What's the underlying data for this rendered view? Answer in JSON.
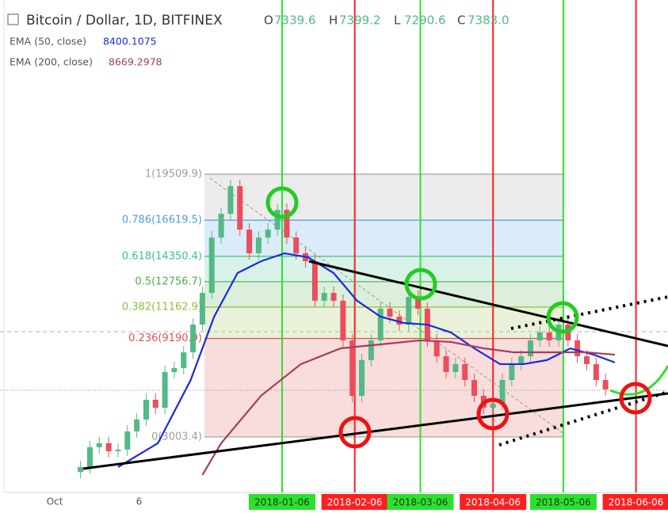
{
  "chart_data": {
    "type": "candlestick",
    "title": "Bitcoin / Dollar, 1D, BITFINEX",
    "ohlc_legend": [
      {
        "label": "O",
        "value": "7339.6"
      },
      {
        "label": "H",
        "value": "7399.2"
      },
      {
        "label": "L",
        "value": "7290.6"
      },
      {
        "label": "C",
        "value": "7383.0"
      }
    ],
    "x": [
      "2017-10-12",
      "2017-10-16",
      "2017-10-20",
      "2017-10-24",
      "2017-10-28",
      "2017-11-01",
      "2017-11-05",
      "2017-11-09",
      "2017-11-13",
      "2017-11-17",
      "2017-11-21",
      "2017-11-25",
      "2017-11-29",
      "2017-12-03",
      "2017-12-07",
      "2017-12-11",
      "2017-12-15",
      "2017-12-19",
      "2017-12-23",
      "2017-12-27",
      "2017-12-31",
      "2018-01-04",
      "2018-01-08",
      "2018-01-12",
      "2018-01-16",
      "2018-01-20",
      "2018-01-24",
      "2018-01-28",
      "2018-02-01",
      "2018-02-05",
      "2018-02-09",
      "2018-02-13",
      "2018-02-17",
      "2018-02-21",
      "2018-02-25",
      "2018-03-01",
      "2018-03-05",
      "2018-03-09",
      "2018-03-13",
      "2018-03-17",
      "2018-03-21",
      "2018-03-25",
      "2018-03-29",
      "2018-04-02",
      "2018-04-06",
      "2018-04-10",
      "2018-04-14",
      "2018-04-18",
      "2018-04-22",
      "2018-04-26",
      "2018-04-30",
      "2018-05-04",
      "2018-05-08",
      "2018-05-12",
      "2018-05-16",
      "2018-05-20",
      "2018-05-24"
    ],
    "open": [
      800,
      1110,
      2360,
      2610,
      2110,
      2210,
      3350,
      4100,
      5340,
      4840,
      7080,
      7330,
      8320,
      10060,
      12050,
      15530,
      17020,
      18760,
      16030,
      14540,
      15530,
      16030,
      17270,
      15530,
      14540,
      14040,
      11560,
      12050,
      11560,
      9070,
      5590,
      7830,
      9070,
      11060,
      10560,
      10060,
      11800,
      11060,
      9070,
      8070,
      7080,
      7580,
      6580,
      5590,
      4840,
      5090,
      6580,
      7580,
      8070,
      9070,
      9570,
      9070,
      10060,
      9070,
      8070,
      7580,
      6580
    ],
    "high": [
      1510,
      2760,
      3010,
      3010,
      2610,
      3750,
      4500,
      5740,
      5740,
      7480,
      7730,
      8720,
      10460,
      12450,
      15930,
      17420,
      19160,
      19160,
      16430,
      15930,
      16430,
      17670,
      17670,
      15930,
      14940,
      14440,
      12450,
      12450,
      11960,
      9470,
      8230,
      9470,
      11460,
      11460,
      10960,
      12200,
      12200,
      11460,
      9470,
      8470,
      7980,
      7980,
      6980,
      5990,
      5490,
      6980,
      7980,
      8470,
      9470,
      9970,
      9970,
      10460,
      10460,
      9470,
      8470,
      7980,
      6980
    ],
    "low": [
      400,
      710,
      1960,
      1710,
      1710,
      1810,
      2950,
      3700,
      4440,
      4440,
      6680,
      6930,
      7920,
      9660,
      11650,
      15130,
      16620,
      15630,
      14140,
      14140,
      15130,
      15630,
      15130,
      14140,
      13640,
      11160,
      11160,
      11160,
      8670,
      5190,
      5190,
      7430,
      8670,
      10160,
      9660,
      9660,
      10660,
      8670,
      7670,
      6680,
      6680,
      6180,
      5190,
      4440,
      4440,
      4690,
      6180,
      7180,
      7670,
      8670,
      8670,
      8670,
      8670,
      7670,
      7180,
      6180,
      5590
    ],
    "close": [
      1110,
      2360,
      2610,
      2110,
      2210,
      3350,
      4100,
      5340,
      4840,
      7080,
      7330,
      8320,
      10060,
      12050,
      15530,
      17020,
      18760,
      16030,
      14540,
      15530,
      16030,
      17270,
      15530,
      14540,
      14040,
      11560,
      12050,
      11560,
      9070,
      5590,
      7830,
      9070,
      11060,
      10560,
      10060,
      11800,
      11060,
      9070,
      8070,
      7080,
      7580,
      6580,
      5590,
      4840,
      5090,
      6580,
      7580,
      8070,
      9070,
      9570,
      9070,
      10060,
      9070,
      8070,
      7580,
      6580,
      5990
    ],
    "up_color": "#53b987",
    "down_color": "#eb4d5c",
    "xlim": [
      "2017-09-10",
      "2018-06-20"
    ],
    "ylim": [
      -480,
      30450
    ],
    "xticks": [
      {
        "value": "2017-10-01",
        "label": "Oct"
      },
      {
        "value": "2017-11-06",
        "label": "6"
      }
    ],
    "series": [
      {
        "name": "EMA (50, close)",
        "legend_value": "8400.1075",
        "color": "#1c2bd9",
        "x": [
          "2017-10-28",
          "2017-11-14",
          "2017-11-28",
          "2017-12-08",
          "2017-12-18",
          "2017-12-28",
          "2018-01-07",
          "2018-01-17",
          "2018-01-28",
          "2018-02-07",
          "2018-02-17",
          "2018-02-27",
          "2018-03-09",
          "2018-03-19",
          "2018-03-29",
          "2018-04-09",
          "2018-04-19",
          "2018-04-29",
          "2018-05-09",
          "2018-05-19",
          "2018-05-28"
        ],
        "values": [
          1110,
          2610,
          6580,
          10560,
          13300,
          14040,
          14540,
          14290,
          13300,
          11560,
          10560,
          10160,
          10060,
          9570,
          8570,
          7580,
          7580,
          7830,
          8570,
          8170,
          7680
        ]
      },
      {
        "name": "EMA (200, close)",
        "legend_value": "8669.2978",
        "color": "#a0405e",
        "x": [
          "2017-12-03",
          "2017-12-11",
          "2017-12-28",
          "2018-01-14",
          "2018-01-31",
          "2018-02-17",
          "2018-03-06",
          "2018-03-19",
          "2018-04-02",
          "2018-04-15",
          "2018-05-02",
          "2018-05-16",
          "2018-05-28"
        ],
        "values": [
          616,
          2610,
          5590,
          7580,
          8570,
          8820,
          9070,
          8970,
          8570,
          8320,
          8320,
          8320,
          8170
        ]
      }
    ],
    "fib_levels": [
      {
        "value": 19509.9,
        "label": "1(19509.9)",
        "color": "#9e9e9e"
      },
      {
        "value": 16619.5,
        "label": "0.786(16619.5)",
        "color": "#4a9fdc"
      },
      {
        "value": 14350.4,
        "label": "0.618(14350.4)",
        "color": "#3fbf8f"
      },
      {
        "value": 12756.7,
        "label": "0.5(12756.7)",
        "color": "#4caf50"
      },
      {
        "value": 11162.9,
        "label": "0.382(11162.9)",
        "color": "#8fbf3a"
      },
      {
        "value": 9190.9,
        "label": "0.236(9190.9)",
        "color": "#e0524f"
      },
      {
        "value": 3003.4,
        "label": "0(3003.4)",
        "color": "#9e9e9e"
      }
    ],
    "date_markers": [
      {
        "date": "2018-01-06",
        "color": "#2ee02e",
        "label_text_color": "#1b3a1b"
      },
      {
        "date": "2018-02-06",
        "color": "#ff1f1f",
        "label_text_color": "#ffffff"
      },
      {
        "date": "2018-03-06",
        "color": "#2ee02e",
        "label_text_color": "#1b3a1b"
      },
      {
        "date": "2018-04-06",
        "color": "#ff1f1f",
        "label_text_color": "#ffffff"
      },
      {
        "date": "2018-05-06",
        "color": "#2ee02e",
        "label_text_color": "#1b3a1b"
      },
      {
        "date": "2018-06-06",
        "color": "#ff1f1f",
        "label_text_color": "#ffffff"
      }
    ]
  }
}
